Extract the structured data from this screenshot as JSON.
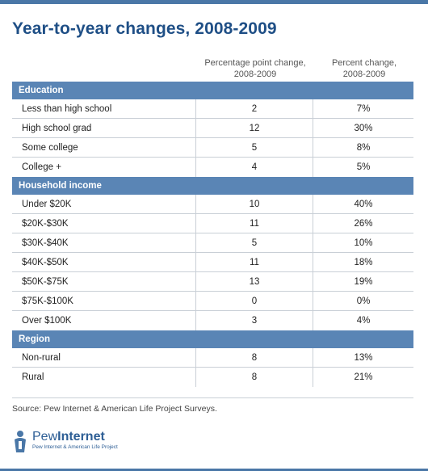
{
  "title": "Year-to-year changes, 2008-2009",
  "columns": {
    "col1_line1": "Percentage point change,",
    "col1_line2": "2008-2009",
    "col2_line1": "Percent change,",
    "col2_line2": "2008-2009"
  },
  "chart_data": {
    "type": "table",
    "title": "Year-to-year changes, 2008-2009",
    "columns": [
      "Percentage point change, 2008-2009",
      "Percent change, 2008-2009"
    ],
    "sections": [
      {
        "name": "Education",
        "rows": [
          {
            "label": "Less than high school",
            "points": "2",
            "percent": "7%"
          },
          {
            "label": "High school grad",
            "points": "12",
            "percent": "30%"
          },
          {
            "label": "Some college",
            "points": "5",
            "percent": "8%"
          },
          {
            "label": "College +",
            "points": "4",
            "percent": "5%"
          }
        ]
      },
      {
        "name": "Household income",
        "rows": [
          {
            "label": "Under $20K",
            "points": "10",
            "percent": "40%"
          },
          {
            "label": "$20K-$30K",
            "points": "11",
            "percent": "26%"
          },
          {
            "label": "$30K-$40K",
            "points": "5",
            "percent": "10%"
          },
          {
            "label": "$40K-$50K",
            "points": "11",
            "percent": "18%"
          },
          {
            "label": "$50K-$75K",
            "points": "13",
            "percent": "19%"
          },
          {
            "label": "$75K-$100K",
            "points": "0",
            "percent": "0%"
          },
          {
            "label": "Over $100K",
            "points": "3",
            "percent": "4%"
          }
        ]
      },
      {
        "name": "Region",
        "rows": [
          {
            "label": "Non-rural",
            "points": "8",
            "percent": "13%"
          },
          {
            "label": "Rural",
            "points": "8",
            "percent": "21%"
          }
        ]
      }
    ]
  },
  "source": "Source: Pew Internet & American Life Project Surveys.",
  "logo": {
    "name_part1": "Pew",
    "name_part2": "Internet",
    "subtitle": "Pew Internet & American Life Project"
  },
  "colors": {
    "accent": "#4a77a7",
    "section_header": "#5a85b5",
    "title": "#1f4f86"
  }
}
